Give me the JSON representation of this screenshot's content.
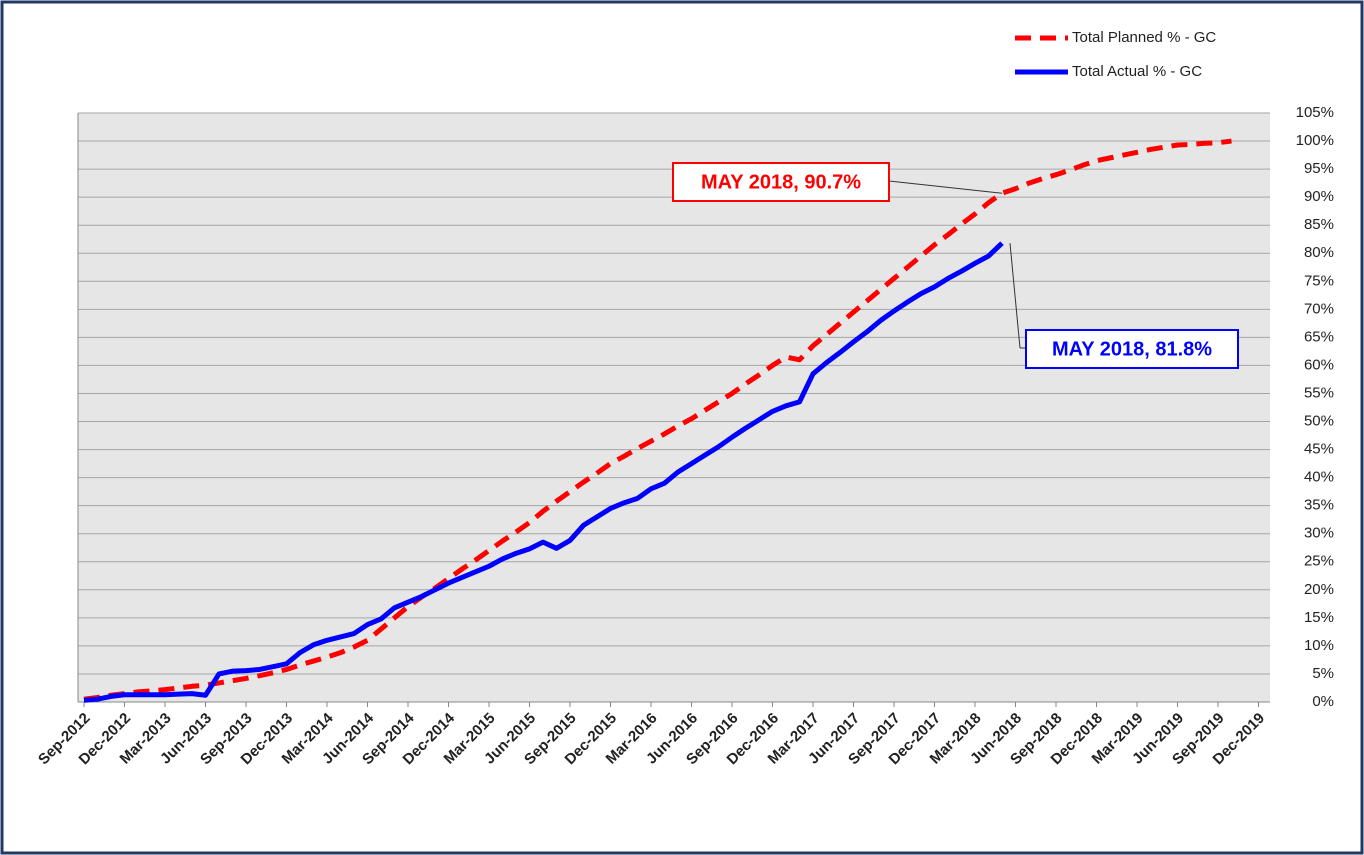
{
  "chart_data": {
    "type": "line",
    "categories": [
      "Sep-2012",
      null,
      null,
      "Dec-2012",
      null,
      null,
      "Mar-2013",
      null,
      null,
      "Jun-2013",
      null,
      null,
      "Sep-2013",
      null,
      null,
      "Dec-2013",
      null,
      null,
      "Mar-2014",
      null,
      null,
      "Jun-2014",
      null,
      null,
      "Sep-2014",
      null,
      null,
      "Dec-2014",
      null,
      null,
      "Mar-2015",
      null,
      null,
      "Jun-2015",
      null,
      null,
      "Sep-2015",
      null,
      null,
      "Dec-2015",
      null,
      null,
      "Mar-2016",
      null,
      null,
      "Jun-2016",
      null,
      null,
      "Sep-2016",
      null,
      null,
      "Dec-2016",
      null,
      null,
      "Mar-2017",
      null,
      null,
      "Jun-2017",
      null,
      null,
      "Sep-2017",
      null,
      null,
      "Dec-2017",
      null,
      null,
      "Mar-2018",
      null,
      null,
      "Jun-2018",
      null,
      null,
      "Sep-2018",
      null,
      null,
      "Dec-2018",
      null,
      null,
      "Mar-2019",
      null,
      null,
      "Jun-2019",
      null,
      null,
      "Sep-2019",
      null,
      null,
      "Dec-2019"
    ],
    "series": [
      {
        "name": "Total Planned % - GC",
        "color": "#ff0000",
        "style": "dashed",
        "values": [
          0.5,
          0.8,
          1.2,
          1.5,
          1.8,
          2.0,
          2.2,
          2.5,
          2.8,
          3.0,
          3.4,
          3.8,
          4.2,
          4.7,
          5.2,
          5.8,
          6.6,
          7.3,
          8.0,
          8.8,
          9.8,
          11.0,
          13.0,
          15.0,
          17.0,
          18.7,
          20.3,
          22.0,
          23.7,
          25.3,
          27.0,
          28.7,
          30.3,
          32.0,
          34.0,
          35.8,
          37.5,
          39.2,
          40.8,
          42.5,
          43.8,
          45.2,
          46.5,
          47.8,
          49.2,
          50.5,
          52.0,
          53.5,
          55.0,
          56.7,
          58.3,
          60.0,
          61.5,
          61.0,
          63.5,
          65.5,
          67.5,
          69.5,
          71.5,
          73.5,
          75.5,
          77.5,
          79.5,
          81.5,
          83.3,
          85.2,
          87.0,
          89.0,
          90.7,
          91.5,
          92.5,
          93.3,
          94.0,
          94.8,
          95.7,
          96.5,
          97.0,
          97.5,
          98.0,
          98.5,
          98.9,
          99.3,
          99.4,
          99.6,
          99.7,
          100,
          null,
          null
        ]
      },
      {
        "name": "Total Actual % - GC",
        "color": "#0000ff",
        "style": "solid",
        "values": [
          0.3,
          0.5,
          1.0,
          1.3,
          1.3,
          1.3,
          1.3,
          1.4,
          1.5,
          1.2,
          5.0,
          5.5,
          5.6,
          5.8,
          6.3,
          6.8,
          8.8,
          10.2,
          11.0,
          11.6,
          12.2,
          13.8,
          14.8,
          16.8,
          17.8,
          18.8,
          20.0,
          21.2,
          22.2,
          23.2,
          24.2,
          25.5,
          26.5,
          27.3,
          28.5,
          27.4,
          28.8,
          31.5,
          33.0,
          34.5,
          35.5,
          36.3,
          38.0,
          39.0,
          41.0,
          42.5,
          44.0,
          45.5,
          47.2,
          48.8,
          50.3,
          51.8,
          52.8,
          53.5,
          58.5,
          60.5,
          62.3,
          64.2,
          66.0,
          68.0,
          69.7,
          71.3,
          72.8,
          74.0,
          75.5,
          76.8,
          78.2,
          79.5,
          81.8,
          null,
          null,
          null,
          null,
          null,
          null,
          null,
          null,
          null,
          null,
          null,
          null,
          null,
          null,
          null,
          null,
          null,
          null,
          null
        ]
      }
    ],
    "ylim": [
      0,
      105
    ],
    "yticks": [
      {
        "value": 0,
        "label": "0%"
      },
      {
        "value": 5,
        "label": "5%"
      },
      {
        "value": 10,
        "label": "10%"
      },
      {
        "value": 15,
        "label": "15%"
      },
      {
        "value": 20,
        "label": "20%"
      },
      {
        "value": 25,
        "label": "25%"
      },
      {
        "value": 30,
        "label": "30%"
      },
      {
        "value": 35,
        "label": "35%"
      },
      {
        "value": 40,
        "label": "40%"
      },
      {
        "value": 45,
        "label": "45%"
      },
      {
        "value": 50,
        "label": "50%"
      },
      {
        "value": 55,
        "label": "55%"
      },
      {
        "value": 60,
        "label": "60%"
      },
      {
        "value": 65,
        "label": "65%"
      },
      {
        "value": 70,
        "label": "70%"
      },
      {
        "value": 75,
        "label": "75%"
      },
      {
        "value": 80,
        "label": "80%"
      },
      {
        "value": 85,
        "label": "85%"
      },
      {
        "value": 90,
        "label": "90%"
      },
      {
        "value": 95,
        "label": "95%"
      },
      {
        "value": 100,
        "label": "100%"
      },
      {
        "value": 105,
        "label": "105%"
      }
    ],
    "grid": true,
    "legend": "top-right",
    "annotations": [
      {
        "text": "MAY 2018, 90.7%",
        "color": "#ff0000"
      },
      {
        "text": "MAY 2018, 81.8%",
        "color": "#0000ff"
      }
    ]
  }
}
